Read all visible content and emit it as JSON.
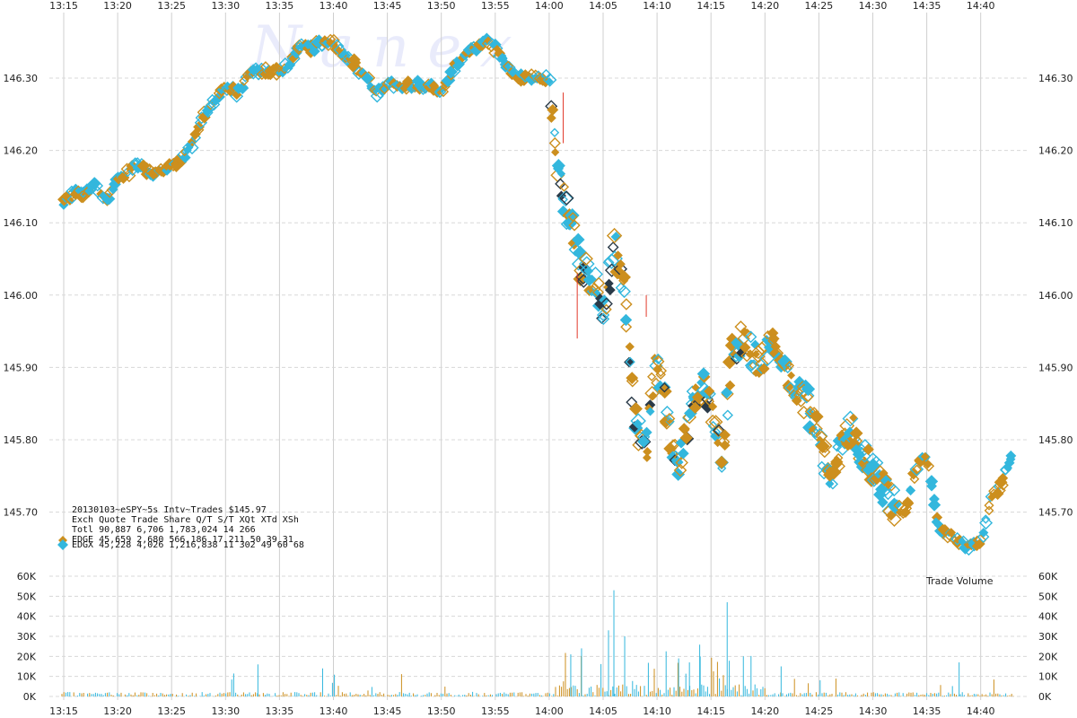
{
  "chart_data": {
    "type": "scatter",
    "title": "20130103~eSPY~5s Intv~Trades $145.97",
    "watermark": "Nanex",
    "x_ticks": [
      "13:15",
      "13:20",
      "13:25",
      "13:30",
      "13:35",
      "13:40",
      "13:45",
      "13:50",
      "13:55",
      "14:00",
      "14:05",
      "14:10",
      "14:15",
      "14:20",
      "14:25",
      "14:30",
      "14:35",
      "14:40"
    ],
    "price_ticks": [
      "146.30",
      "146.20",
      "146.10",
      "146.00",
      "145.90",
      "145.80",
      "145.70"
    ],
    "price_ylim": [
      145.65,
      146.38
    ],
    "volume_ticks": [
      "60K",
      "50K",
      "40K",
      "30K",
      "20K",
      "10K",
      "0K"
    ],
    "volume_ylim": [
      0,
      60000
    ],
    "volume_label": "Trade Volume",
    "stats_table": {
      "header": "Exch  Quote Trade      Share  Q/T   S/T  XQt XTd XSh",
      "rows": [
        {
          "label": "Totl 90,887 6,706 1,783,024   14   266",
          "color": ""
        },
        {
          "label": "EDGE 45,659 2,680   566,186   17   211   50  39  31",
          "color": "#cc8f1e"
        },
        {
          "label": "EDGX 45,228 4,026 1,216,838   11   302   49  60  68",
          "color": "#33b7dd"
        }
      ]
    },
    "colors": {
      "EDGE": "#cc8f1e",
      "EDGX": "#33b7dd",
      "dark": "#2a3a48",
      "red": "#e23a2a"
    },
    "price_path": [
      [
        "13:15",
        146.13
      ],
      [
        "13:16",
        146.14
      ],
      [
        "13:17",
        146.14
      ],
      [
        "13:18",
        146.15
      ],
      [
        "13:19",
        146.13
      ],
      [
        "13:20",
        146.16
      ],
      [
        "13:21",
        146.17
      ],
      [
        "13:22",
        146.18
      ],
      [
        "13:23",
        146.17
      ],
      [
        "13:24",
        146.17
      ],
      [
        "13:25",
        146.18
      ],
      [
        "13:26",
        146.19
      ],
      [
        "13:27",
        146.21
      ],
      [
        "13:28",
        146.25
      ],
      [
        "13:29",
        146.27
      ],
      [
        "13:30",
        146.29
      ],
      [
        "13:31",
        146.28
      ],
      [
        "13:32",
        146.3
      ],
      [
        "13:33",
        146.31
      ],
      [
        "13:34",
        146.31
      ],
      [
        "13:35",
        146.31
      ],
      [
        "13:36",
        146.32
      ],
      [
        "13:37",
        146.35
      ],
      [
        "13:38",
        146.34
      ],
      [
        "13:39",
        146.35
      ],
      [
        "13:40",
        146.35
      ],
      [
        "13:41",
        146.33
      ],
      [
        "13:42",
        146.32
      ],
      [
        "13:43",
        146.3
      ],
      [
        "13:44",
        146.28
      ],
      [
        "13:45",
        146.29
      ],
      [
        "13:46",
        146.29
      ],
      [
        "13:47",
        146.29
      ],
      [
        "13:48",
        146.29
      ],
      [
        "13:49",
        146.29
      ],
      [
        "13:50",
        146.28
      ],
      [
        "13:51",
        146.31
      ],
      [
        "13:52",
        146.33
      ],
      [
        "13:53",
        146.34
      ],
      [
        "13:54",
        146.35
      ],
      [
        "13:55",
        146.34
      ],
      [
        "13:56",
        146.32
      ],
      [
        "13:57",
        146.3
      ],
      [
        "13:58",
        146.3
      ],
      [
        "13:59",
        146.3
      ],
      [
        "14:00",
        146.3
      ],
      [
        "14:00.5",
        146.22
      ],
      [
        "14:01",
        146.15
      ],
      [
        "14:02",
        146.1
      ],
      [
        "14:03",
        146.04
      ],
      [
        "14:04",
        146.02
      ],
      [
        "14:05",
        145.97
      ],
      [
        "14:06",
        146.07
      ],
      [
        "14:07",
        146.0
      ],
      [
        "14:08",
        145.82
      ],
      [
        "14:09",
        145.79
      ],
      [
        "14:10",
        145.92
      ],
      [
        "14:11",
        145.82
      ],
      [
        "14:12",
        145.76
      ],
      [
        "14:13",
        145.84
      ],
      [
        "14:14",
        145.88
      ],
      [
        "14:15",
        145.85
      ],
      [
        "14:16",
        145.78
      ],
      [
        "14:17",
        145.92
      ],
      [
        "14:18",
        145.94
      ],
      [
        "14:19",
        145.91
      ],
      [
        "14:20",
        145.92
      ],
      [
        "14:21",
        145.93
      ],
      [
        "14:22",
        145.89
      ],
      [
        "14:23",
        145.87
      ],
      [
        "14:24",
        145.85
      ],
      [
        "14:25",
        145.8
      ],
      [
        "14:26",
        145.75
      ],
      [
        "14:27",
        145.78
      ],
      [
        "14:28",
        145.82
      ],
      [
        "14:29",
        145.78
      ],
      [
        "14:30",
        145.76
      ],
      [
        "14:31",
        145.73
      ],
      [
        "14:32",
        145.71
      ],
      [
        "14:33",
        145.7
      ],
      [
        "14:34",
        145.76
      ],
      [
        "14:35",
        145.78
      ],
      [
        "14:36",
        145.68
      ],
      [
        "14:37",
        145.67
      ],
      [
        "14:38",
        145.66
      ],
      [
        "14:39",
        145.65
      ],
      [
        "14:40",
        145.66
      ],
      [
        "14:41",
        145.72
      ],
      [
        "14:42",
        145.74
      ],
      [
        "14:43",
        145.78
      ]
    ]
  }
}
